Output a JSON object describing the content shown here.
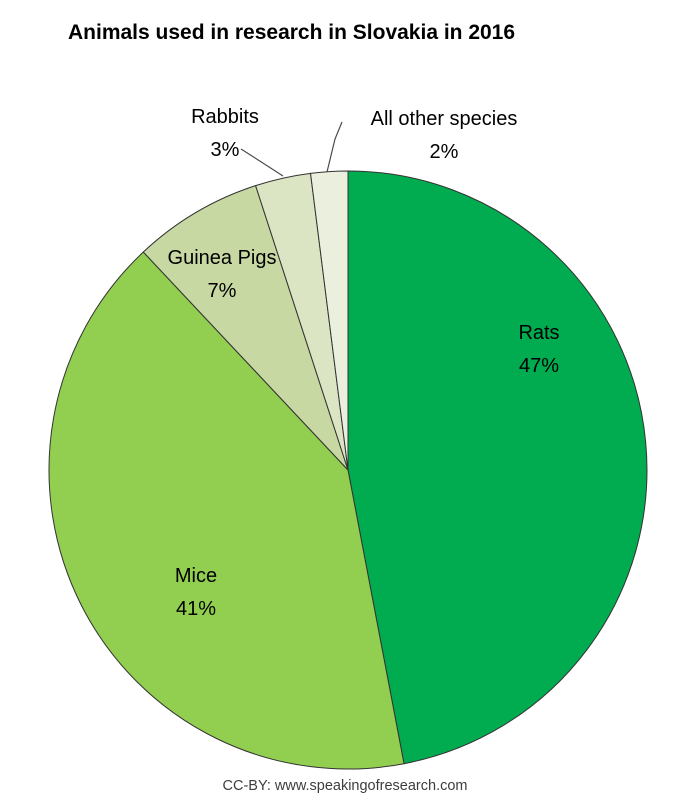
{
  "title": "Animals used in research in Slovakia in 2016",
  "footer": "CC-BY: www.speakingofresearch.com",
  "chart_data": {
    "type": "pie",
    "title": "Animals used in research in Slovakia in 2016",
    "start_angle_deg": -90,
    "direction": "clockwise",
    "legend": "none",
    "stroke_color": "#333333",
    "background_color": "#ffffff",
    "label_style": "labels-with-percent, leader lines on small slices",
    "slices": [
      {
        "label": "Rats",
        "pct_label": "47%",
        "value": 47,
        "color": "#00AC4F"
      },
      {
        "label": "Mice",
        "pct_label": "41%",
        "value": 41,
        "color": "#92CE50"
      },
      {
        "label": "Guinea Pigs",
        "pct_label": "7%",
        "value": 7,
        "color": "#C8D8A3"
      },
      {
        "label": "Rabbits",
        "pct_label": "3%",
        "value": 3,
        "color": "#DBE5C3"
      },
      {
        "label": "All other species",
        "pct_label": "2%",
        "value": 2,
        "color": "#EBF0DE"
      }
    ]
  }
}
